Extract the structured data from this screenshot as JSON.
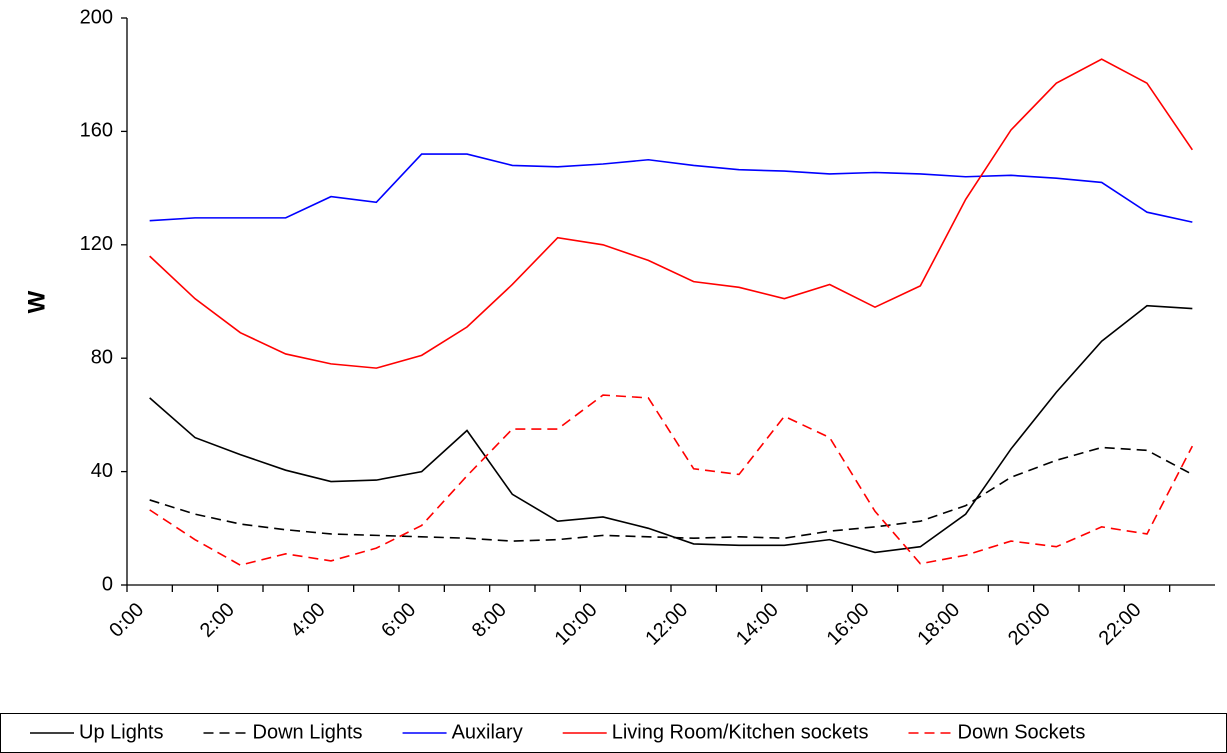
{
  "chart_data": {
    "type": "line",
    "y_label": "W",
    "x": [
      0.5,
      1.5,
      2.5,
      3.5,
      4.5,
      5.5,
      6.5,
      7.5,
      8.5,
      9.5,
      10.5,
      11.5,
      12.5,
      13.5,
      14.5,
      15.5,
      16.5,
      17.5,
      18.5,
      19.5,
      20.5,
      21.5,
      22.5,
      23.5
    ],
    "xlim": [
      0,
      24
    ],
    "xticks": [
      {
        "value": 0,
        "label": "0:00"
      },
      {
        "value": 2,
        "label": "2:00"
      },
      {
        "value": 4,
        "label": "4:00"
      },
      {
        "value": 6,
        "label": "6:00"
      },
      {
        "value": 8,
        "label": "8:00"
      },
      {
        "value": 10,
        "label": "10:00"
      },
      {
        "value": 12,
        "label": "12:00"
      },
      {
        "value": 14,
        "label": "14:00"
      },
      {
        "value": 16,
        "label": "16:00"
      },
      {
        "value": 18,
        "label": "18:00"
      },
      {
        "value": 20,
        "label": "20:00"
      },
      {
        "value": 22,
        "label": "22:00"
      }
    ],
    "ylim": [
      0,
      200
    ],
    "yticks": [
      0,
      40,
      80,
      120,
      160,
      200
    ],
    "grid": false,
    "legend": "bottom",
    "series": [
      {
        "name": "Up Lights",
        "color": "#000000",
        "dash": false,
        "values": [
          66,
          52,
          46,
          40.5,
          36.5,
          37,
          40,
          54.5,
          32,
          22.5,
          24,
          20,
          14.5,
          14,
          14,
          16,
          11.5,
          13.5,
          25,
          48,
          68,
          86,
          98.5,
          97.5
        ]
      },
      {
        "name": "Down Lights",
        "color": "#000000",
        "dash": true,
        "values": [
          30,
          25,
          21.5,
          19.5,
          18,
          17.5,
          17,
          16.5,
          15.5,
          16,
          17.5,
          17,
          16.5,
          17,
          16.5,
          19,
          20.5,
          22.5,
          28,
          38,
          44,
          48.5,
          47.5,
          39
        ]
      },
      {
        "name": "Auxilary",
        "color": "#0000ff",
        "dash": false,
        "values": [
          128.5,
          129.5,
          129.5,
          129.5,
          137,
          135,
          152,
          152,
          148,
          147.5,
          148.5,
          150,
          148,
          146.5,
          146,
          145,
          145.5,
          145,
          144,
          144.5,
          143.5,
          142,
          131.5,
          128
        ]
      },
      {
        "name": "Living Room/Kitchen sockets",
        "color": "#ff0000",
        "dash": false,
        "values": [
          116,
          101,
          89,
          81.5,
          78,
          76.5,
          81,
          91,
          106,
          122.5,
          120,
          114.5,
          107,
          105,
          101,
          106,
          98,
          105.5,
          136,
          160.5,
          177,
          185.5,
          177,
          153.5
        ]
      },
      {
        "name": "Down Sockets",
        "color": "#ff0000",
        "dash": true,
        "values": [
          26.5,
          16,
          7,
          11,
          8.5,
          13,
          21,
          38.5,
          55,
          55,
          67,
          66,
          41,
          39,
          59.5,
          52,
          26,
          7.5,
          10.5,
          15.5,
          13.5,
          20.5,
          18,
          49
        ]
      }
    ]
  }
}
